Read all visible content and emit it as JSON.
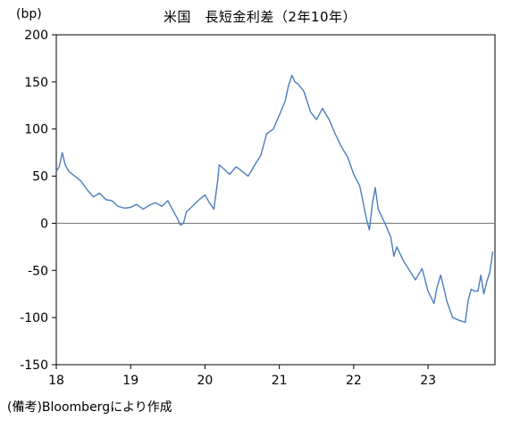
{
  "unit_label": "(bp)",
  "title": "米国　長短金利差（2年10年）",
  "note": "(備考)Bloombergにより作成",
  "chart_data": {
    "type": "line",
    "title": "米国　長短金利差（2年10年）",
    "xlabel": "",
    "ylabel": "(bp)",
    "xlim": [
      2018.0,
      2023.9
    ],
    "ylim": [
      -150,
      200
    ],
    "y_ticks": [
      200,
      150,
      100,
      50,
      0,
      -50,
      -100,
      -150
    ],
    "x_ticks": [
      {
        "value": 2018,
        "label": "18"
      },
      {
        "value": 2019,
        "label": "19"
      },
      {
        "value": 2020,
        "label": "20"
      },
      {
        "value": 2021,
        "label": "21"
      },
      {
        "value": 2022,
        "label": "22"
      },
      {
        "value": 2023,
        "label": "23"
      }
    ],
    "reference_line": 0,
    "series_color": "#4a7ebb",
    "series": [
      {
        "x": [
          2018.0,
          2018.04,
          2018.08,
          2018.12,
          2018.17,
          2018.25,
          2018.33,
          2018.42,
          2018.5,
          2018.58,
          2018.67,
          2018.75,
          2018.83,
          2018.92,
          2019.0,
          2019.08,
          2019.17,
          2019.25,
          2019.33,
          2019.42,
          2019.5,
          2019.58,
          2019.63,
          2019.67,
          2019.71,
          2019.75,
          2019.83,
          2019.92,
          2020.0,
          2020.06,
          2020.12,
          2020.17,
          2020.19,
          2020.25,
          2020.33,
          2020.42,
          2020.5,
          2020.58,
          2020.67,
          2020.75,
          2020.83,
          2020.92,
          2021.0,
          2021.08,
          2021.12,
          2021.17,
          2021.21,
          2021.25,
          2021.33,
          2021.42,
          2021.5,
          2021.58,
          2021.67,
          2021.75,
          2021.83,
          2021.92,
          2022.0,
          2022.08,
          2022.12,
          2022.17,
          2022.21,
          2022.25,
          2022.29,
          2022.33,
          2022.42,
          2022.5,
          2022.54,
          2022.58,
          2022.67,
          2022.75,
          2022.83,
          2022.92,
          2023.0,
          2023.08,
          2023.12,
          2023.17,
          2023.21,
          2023.25,
          2023.33,
          2023.42,
          2023.5,
          2023.54,
          2023.58,
          2023.63,
          2023.67,
          2023.71,
          2023.75,
          2023.79,
          2023.83,
          2023.87
        ],
        "values": [
          55,
          60,
          75,
          62,
          55,
          50,
          45,
          35,
          28,
          32,
          25,
          24,
          18,
          16,
          17,
          20,
          15,
          19,
          22,
          18,
          24,
          12,
          5,
          -2,
          0,
          12,
          18,
          25,
          30,
          22,
          15,
          45,
          62,
          58,
          52,
          60,
          55,
          50,
          62,
          72,
          95,
          100,
          115,
          130,
          145,
          157,
          150,
          148,
          140,
          118,
          110,
          122,
          110,
          95,
          82,
          70,
          52,
          40,
          25,
          5,
          -7,
          20,
          38,
          15,
          0,
          -15,
          -35,
          -25,
          -40,
          -50,
          -60,
          -48,
          -72,
          -85,
          -68,
          -55,
          -68,
          -82,
          -100,
          -103,
          -105,
          -82,
          -70,
          -72,
          -72,
          -55,
          -75,
          -62,
          -52,
          -30
        ]
      }
    ]
  }
}
